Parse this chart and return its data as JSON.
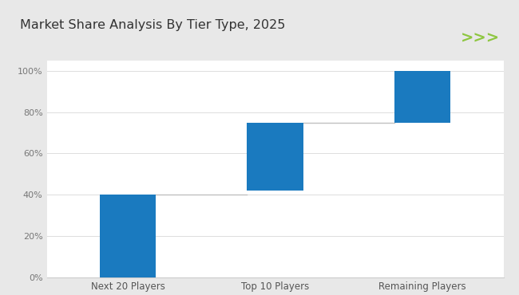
{
  "title": "Market Share Analysis By Tier Type, 2025",
  "categories": [
    "Next 20 Players",
    "Top 10 Players",
    "Remaining Players"
  ],
  "bar_bottoms": [
    0,
    42,
    75
  ],
  "bar_tops": [
    40,
    75,
    100
  ],
  "bar_color": "#1a7abf",
  "connector_color": "#c0c0c0",
  "outer_bg_color": "#e8e8e8",
  "header_bg_color": "#ffffff",
  "plot_bg_color": "#ffffff",
  "title_fontsize": 11.5,
  "tick_fontsize": 8,
  "xlabel_fontsize": 8.5,
  "green_line_color": "#8dc63f",
  "arrow_color": "#8dc63f",
  "arrow_text": ">>>",
  "ylim": [
    0,
    105
  ],
  "yticks": [
    0,
    20,
    40,
    60,
    80,
    100
  ],
  "ytick_labels": [
    "0%",
    "20%",
    "40%",
    "60%",
    "80%",
    "100%"
  ]
}
